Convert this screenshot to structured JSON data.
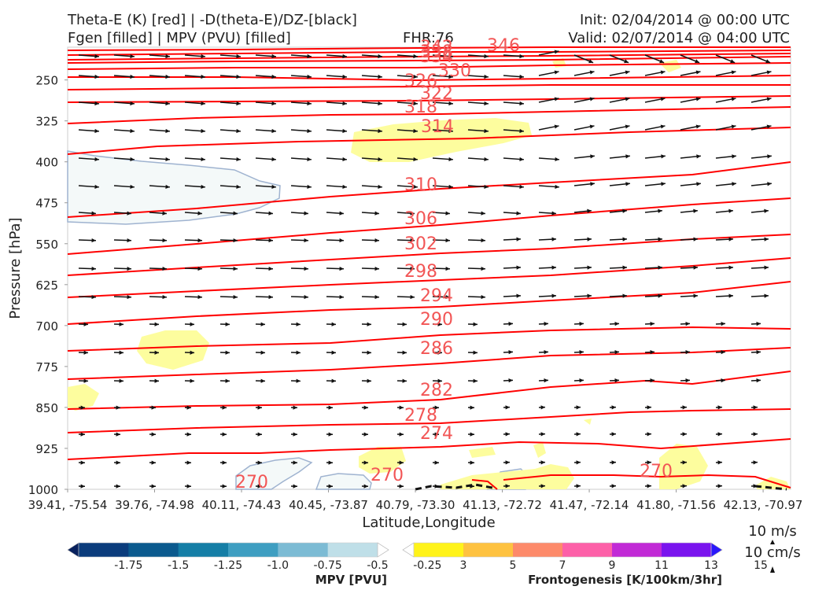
{
  "header": {
    "title_left_1": "Theta-E (K) [red] | -D(theta-E)/DZ-[black]",
    "title_left_2": "Fgen [filled] | MPV (PVU) [filled]",
    "fhr": "FHR:76",
    "init": "Init: 02/04/2014 @ 00:00 UTC",
    "valid": "Valid: 02/07/2014 @ 04:00 UTC"
  },
  "chart_data": {
    "type": "cross-section",
    "xlabel": "Latitude,Longitude",
    "ylabel": "Pressure [hPa]",
    "ylim": [
      1000,
      190
    ],
    "y_ticks": [
      250,
      325,
      400,
      475,
      550,
      625,
      700,
      775,
      850,
      925,
      1000
    ],
    "x_ticks": [
      "39.41, -75.54",
      "39.76, -74.98",
      "40.11, -74.43",
      "40.45, -73.87",
      "40.79, -73.30",
      "41.13, -72.72",
      "41.47, -72.14",
      "41.80, -71.56",
      "42.13, -70.97"
    ],
    "theta_e_levels": [
      346,
      342,
      338,
      334,
      330,
      326,
      322,
      318,
      314,
      310,
      306,
      302,
      298,
      294,
      290,
      286,
      282,
      278,
      274,
      270
    ],
    "theta_e_color": "#ff0000",
    "theta_e_label_color": "#f25555",
    "barb_legend": [
      "10 m/s",
      "10 cm/s"
    ],
    "mpv_colorbar": {
      "label": "MPV [PVU]",
      "ticks": [
        "-1.75",
        "-1.5",
        "-1.25",
        "-1.0",
        "-0.75",
        "-0.5",
        "-0.25"
      ],
      "colors": [
        "#08215e",
        "#0b3c7c",
        "#0b5a8e",
        "#157ea6",
        "#3e9ec1",
        "#7cbbd4",
        "#bfdfe8",
        "#ffffff"
      ]
    },
    "fgen_colorbar": {
      "label": "Frontogenesis [K/100km/3hr]",
      "ticks": [
        "3",
        "5",
        "7",
        "9",
        "11",
        "13",
        "15"
      ],
      "colors": [
        "#ffffff",
        "#fff31a",
        "#fec240",
        "#fd8a6a",
        "#fd60a8",
        "#c12ad6",
        "#7a14ee",
        "#2a18fb"
      ]
    }
  }
}
